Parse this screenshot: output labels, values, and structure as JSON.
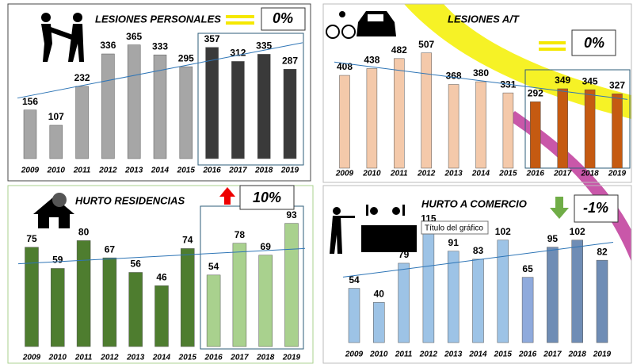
{
  "chart_data": [
    {
      "type": "bar",
      "title": "LESIONES PERSONALES",
      "change_label": "0%",
      "categories": [
        "2009",
        "2010",
        "2011",
        "2012",
        "2013",
        "2014",
        "2015",
        "2016",
        "2017",
        "2018",
        "2019"
      ],
      "values": [
        156,
        107,
        232,
        336,
        365,
        333,
        295,
        357,
        312,
        335,
        287
      ],
      "colors": [
        "#a6a6a6",
        "#a6a6a6",
        "#a6a6a6",
        "#a6a6a6",
        "#a6a6a6",
        "#a6a6a6",
        "#a6a6a6",
        "#3a3a3a",
        "#3a3a3a",
        "#3a3a3a",
        "#3a3a3a"
      ],
      "ylim": [
        0,
        420
      ]
    },
    {
      "type": "bar",
      "title": "LESIONES A/T",
      "change_label": "0%",
      "categories": [
        "2009",
        "2010",
        "2011",
        "2012",
        "2013",
        "2014",
        "2015",
        "2016",
        "2017",
        "2018",
        "2019"
      ],
      "values": [
        408,
        438,
        482,
        507,
        368,
        380,
        331,
        292,
        349,
        345,
        327
      ],
      "colors": [
        "#f4c9aa",
        "#f4c9aa",
        "#f4c9aa",
        "#f4c9aa",
        "#f4c9aa",
        "#f4c9aa",
        "#f4c9aa",
        "#c55a11",
        "#c55a11",
        "#c55a11",
        "#c55a11"
      ],
      "ylim": [
        0,
        600
      ]
    },
    {
      "type": "bar",
      "title": "HURTO RESIDENCIAS",
      "change_label": "10%",
      "categories": [
        "2009",
        "2010",
        "2011",
        "2012",
        "2013",
        "2014",
        "2015",
        "2016",
        "2017",
        "2018",
        "2019"
      ],
      "values": [
        75,
        59,
        80,
        67,
        56,
        46,
        74,
        54,
        78,
        69,
        93
      ],
      "colors": [
        "#4e7d2f",
        "#4e7d2f",
        "#4e7d2f",
        "#4e7d2f",
        "#4e7d2f",
        "#4e7d2f",
        "#4e7d2f",
        "#a9d18e",
        "#a9d18e",
        "#a9d18e",
        "#a9d18e"
      ],
      "ylim": [
        0,
        100
      ]
    },
    {
      "type": "bar",
      "title": "HURTO A COMERCIO",
      "change_label": "-1%",
      "tooltip": "Título del gráfico",
      "categories": [
        "2009",
        "2010",
        "2011",
        "2012",
        "2013",
        "2014",
        "2015",
        "2016",
        "2017",
        "2018",
        "2019"
      ],
      "values": [
        54,
        40,
        79,
        115,
        91,
        83,
        102,
        65,
        95,
        102,
        82
      ],
      "colors": [
        "#9dc3e6",
        "#9dc3e6",
        "#9dc3e6",
        "#9dc3e6",
        "#9dc3e6",
        "#9dc3e6",
        "#9dc3e6",
        "#8faadc",
        "#6f8db5",
        "#6f8db5",
        "#6f8db5"
      ],
      "ylim": [
        0,
        120
      ]
    }
  ]
}
